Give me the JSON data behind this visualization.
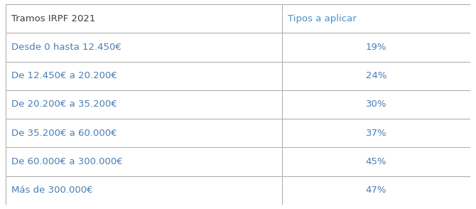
{
  "header": [
    "Tramos IRPF 2021",
    "Tipos a aplicar"
  ],
  "rows": [
    [
      "Desde 0 hasta 12.450€",
      "19%"
    ],
    [
      "De 12.450€ a 20.200€",
      "24%"
    ],
    [
      "De 20.200€ a 35.200€",
      "30%"
    ],
    [
      "De 35.200€ a 60.000€",
      "37%"
    ],
    [
      "De 60.000€ a 300.000€",
      "45%"
    ],
    [
      "Más de 300.000€",
      "47%"
    ]
  ],
  "header_color_left": "#404040",
  "header_color_right": "#4a90c4",
  "row_color_left": "#4a7db5",
  "row_color_right": "#4a7db5",
  "border_color": "#aaaaaa",
  "background_color": "#ffffff",
  "font_size": 9.5,
  "header_font_size": 9.5,
  "col_split": 0.595,
  "figsize": [
    6.7,
    2.94
  ],
  "dpi": 100
}
